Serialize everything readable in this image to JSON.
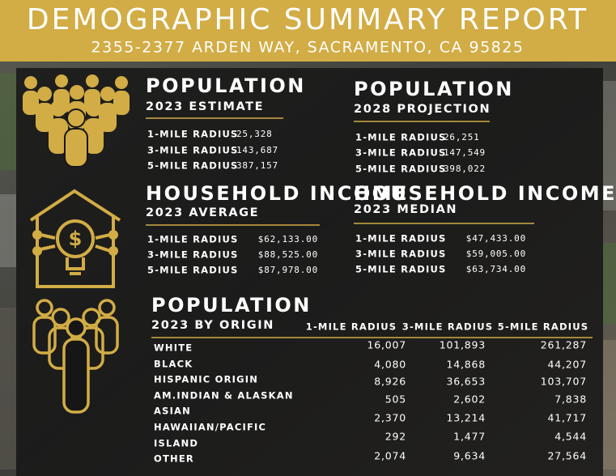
{
  "header": {
    "title": "DEMOGRAPHIC SUMMARY REPORT",
    "subtitle": "2355-2377 ARDEN WAY, SACRAMENTO, CA 95825"
  },
  "population_2023": {
    "title": "POPULATION",
    "subtitle": "2023 ESTIMATE",
    "rows": [
      {
        "label": "1-MILE RADIUS",
        "value": "25,328"
      },
      {
        "label": "3-MILE RADIUS",
        "value": "143,687"
      },
      {
        "label": "5-MILE RADIUS",
        "value": "387,157"
      }
    ]
  },
  "population_2028": {
    "title": "POPULATION",
    "subtitle": "2028 PROJECTION",
    "rows": [
      {
        "label": "1-MILE RADIUS",
        "value": "26,251"
      },
      {
        "label": "3-MILE RADIUS",
        "value": "147,549"
      },
      {
        "label": "5-MILE RADIUS",
        "value": "398,022"
      }
    ]
  },
  "income_average": {
    "title": "HOUSEHOLD INCOME",
    "subtitle": "2023 AVERAGE",
    "rows": [
      {
        "label": "1-MILE RADIUS",
        "value": "$62,133.00"
      },
      {
        "label": "3-MILE RADIUS",
        "value": "$88,525.00"
      },
      {
        "label": "5-MILE RADIUS",
        "value": "$87,978.00"
      }
    ]
  },
  "income_median": {
    "title": "HOUSEHOLD INCOME",
    "subtitle": "2023 MEDIAN",
    "rows": [
      {
        "label": "1-MILE RADIUS",
        "value": "$47,433.00"
      },
      {
        "label": "3-MILE RADIUS",
        "value": "$59,005.00"
      },
      {
        "label": "5-MILE RADIUS",
        "value": "$63,734.00"
      }
    ]
  },
  "origin": {
    "title": "POPULATION",
    "subtitle": "2023 BY ORIGIN",
    "columns": [
      "1-MILE RADIUS",
      "3-MILE RADIUS",
      "5-MILE RADIUS"
    ],
    "labels": [
      "WHITE",
      "BLACK",
      "HISPANIC ORIGIN",
      "AM.INDIAN & ALASKAN",
      "ASIAN",
      "HAWAIIAN/PACIFIC",
      "ISLAND",
      "OTHER"
    ],
    "rows": [
      [
        "16,007",
        "101,893",
        "261,287"
      ],
      [
        "4,080",
        "14,868",
        "44,207"
      ],
      [
        "8,926",
        "36,653",
        "103,707"
      ],
      [
        "505",
        "2,602",
        "7,838"
      ],
      [
        "2,370",
        "13,214",
        "41,717"
      ],
      [
        "292",
        "1,477",
        "4,544"
      ],
      [
        "2,074",
        "9,634",
        "27,564"
      ]
    ]
  }
}
